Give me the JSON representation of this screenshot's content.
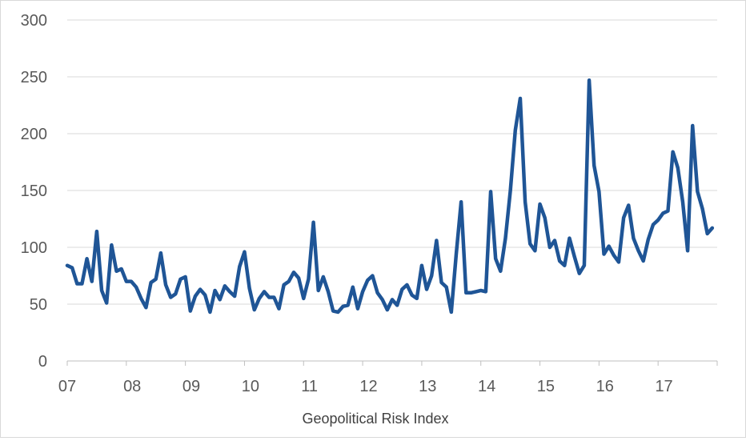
{
  "chart_data": {
    "type": "line",
    "title": "",
    "xlabel": "Geopolitical Risk Index",
    "ylabel": "",
    "ylim": [
      0,
      300
    ],
    "yticks": [
      "0",
      "50",
      "100",
      "150",
      "200",
      "250",
      "300"
    ],
    "xticks": [
      "07",
      "08",
      "09",
      "10",
      "11",
      "12",
      "13",
      "14",
      "15",
      "16",
      "17"
    ],
    "grid": "horizontal",
    "legend": "none",
    "x_start_year": "2007",
    "x_end_year": "2017",
    "series": [
      {
        "color": "#1f5596",
        "values": [
          84,
          82,
          68,
          68,
          90,
          70,
          114,
          62,
          51,
          102,
          79,
          81,
          70,
          70,
          65,
          55,
          47,
          69,
          72,
          95,
          67,
          56,
          59,
          72,
          74,
          44,
          57,
          63,
          58,
          43,
          62,
          54,
          66,
          61,
          57,
          83,
          96,
          64,
          45,
          55,
          61,
          56,
          56,
          46,
          67,
          70,
          78,
          73,
          55,
          72,
          122,
          62,
          74,
          61,
          44,
          43,
          48,
          49,
          65,
          46,
          61,
          71,
          75,
          60,
          54,
          45,
          54,
          49,
          63,
          67,
          58,
          55,
          84,
          63,
          75,
          106,
          69,
          65,
          43,
          94,
          140,
          60,
          60,
          61,
          62,
          61,
          149,
          90,
          79,
          108,
          150,
          203,
          231,
          140,
          103,
          97,
          138,
          126,
          100,
          106,
          88,
          84,
          108,
          92,
          77,
          84,
          247,
          172,
          149,
          94,
          101,
          93,
          87,
          126,
          137,
          108,
          97,
          88,
          107,
          120,
          124,
          130,
          132,
          184,
          170,
          140,
          97,
          207,
          149,
          134,
          112,
          117
        ]
      }
    ]
  }
}
